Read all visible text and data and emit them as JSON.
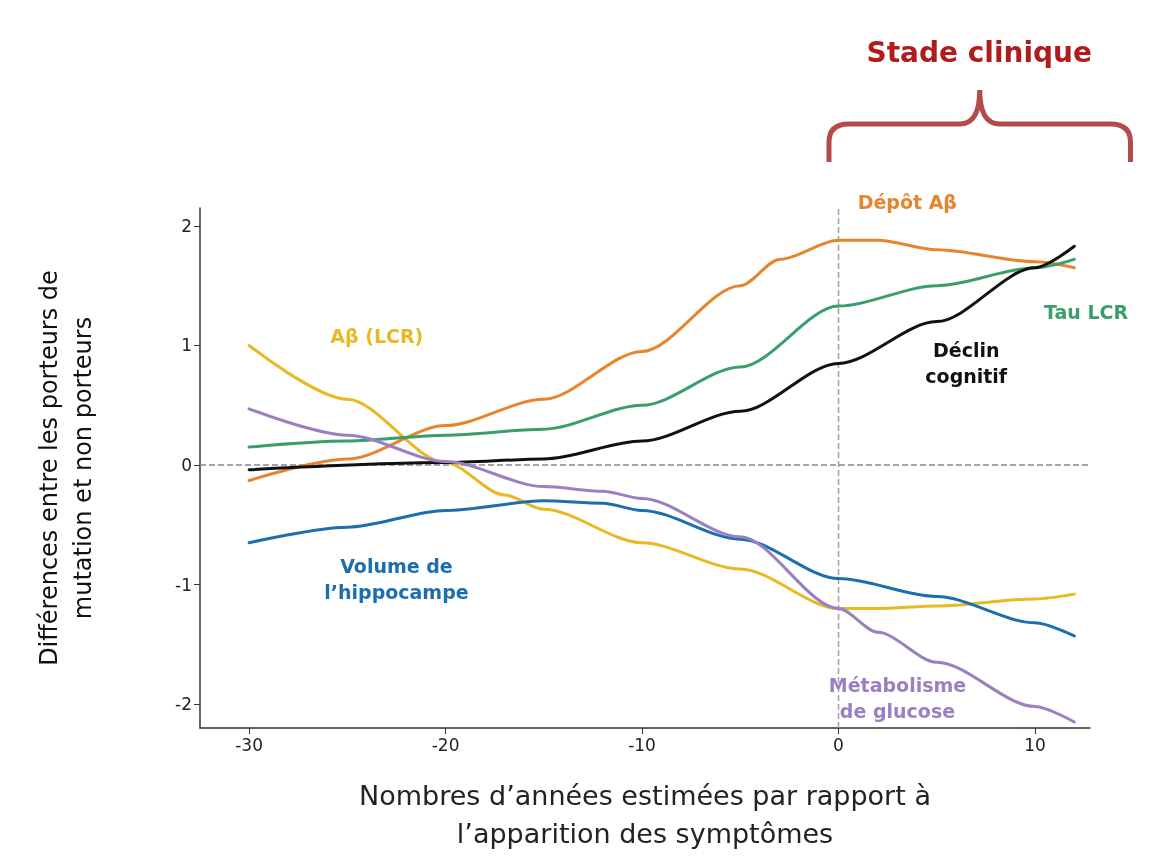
{
  "chart_data": {
    "type": "line",
    "xlabel": "Nombres d’années estimées par rapport à l’apparition des symptômes",
    "ylabel": "Différences entre les porteurs de mutation et non porteurs",
    "xlim": [
      -32.5,
      12.8
    ],
    "ylim": [
      -2.2,
      2.15
    ],
    "xticks": [
      -30,
      -20,
      -10,
      0,
      10
    ],
    "yticks": [
      -2,
      -1,
      0,
      1,
      2
    ],
    "grid": false,
    "marker": "none",
    "line_style": "solid",
    "series": [
      {
        "name": "Aβ (LCR)",
        "color": "#e8b923",
        "x": [
          -30,
          -25,
          -20,
          -17,
          -15,
          -10,
          -5,
          0,
          2,
          5,
          10,
          12
        ],
        "values": [
          1.0,
          0.55,
          0.02,
          -0.25,
          -0.37,
          -0.65,
          -0.87,
          -1.2,
          -1.2,
          -1.18,
          -1.12,
          -1.08
        ]
      },
      {
        "name": "Dépôt Aβ",
        "color": "#e6852e",
        "x": [
          -30,
          -25,
          -20,
          -15,
          -10,
          -5,
          -3,
          0,
          2,
          5,
          10,
          12
        ],
        "values": [
          -0.13,
          0.05,
          0.33,
          0.55,
          0.95,
          1.5,
          1.72,
          1.88,
          1.88,
          1.8,
          1.7,
          1.65
        ]
      },
      {
        "name": "Tau LCR",
        "color": "#3a9e6b",
        "x": [
          -30,
          -25,
          -20,
          -15,
          -10,
          -5,
          0,
          5,
          10,
          12
        ],
        "values": [
          0.15,
          0.2,
          0.25,
          0.3,
          0.5,
          0.82,
          1.33,
          1.5,
          1.65,
          1.72
        ]
      },
      {
        "name": "Déclin\ncognitif",
        "color": "#111111",
        "x": [
          -30,
          -20,
          -15,
          -10,
          -5,
          0,
          5,
          10,
          12
        ],
        "values": [
          -0.04,
          0.02,
          0.05,
          0.2,
          0.45,
          0.85,
          1.2,
          1.65,
          1.83
        ]
      },
      {
        "name": "Volume de\nl’hippocampe",
        "color": "#1b6fae",
        "x": [
          -30,
          -25,
          -20,
          -15,
          -12,
          -10,
          -5,
          0,
          5,
          10,
          12
        ],
        "values": [
          -0.65,
          -0.52,
          -0.38,
          -0.3,
          -0.32,
          -0.38,
          -0.62,
          -0.95,
          -1.1,
          -1.32,
          -1.43
        ]
      },
      {
        "name": "Métabolisme\nde glucose",
        "color": "#9a80c2",
        "x": [
          -30,
          -25,
          -20,
          -15,
          -12,
          -10,
          -5,
          0,
          2,
          5,
          10,
          12
        ],
        "values": [
          0.47,
          0.25,
          0.03,
          -0.18,
          -0.22,
          -0.28,
          -0.6,
          -1.2,
          -1.4,
          -1.65,
          -2.02,
          -2.15
        ]
      }
    ],
    "ref_lines": [
      {
        "axis": "y",
        "value": 0,
        "color": "#888888",
        "line_style": "dashed"
      },
      {
        "axis": "x",
        "value": 0,
        "color": "#a0a0a0",
        "line_style": "dashed"
      }
    ],
    "annotations": [
      "Stade clinique"
    ]
  }
}
